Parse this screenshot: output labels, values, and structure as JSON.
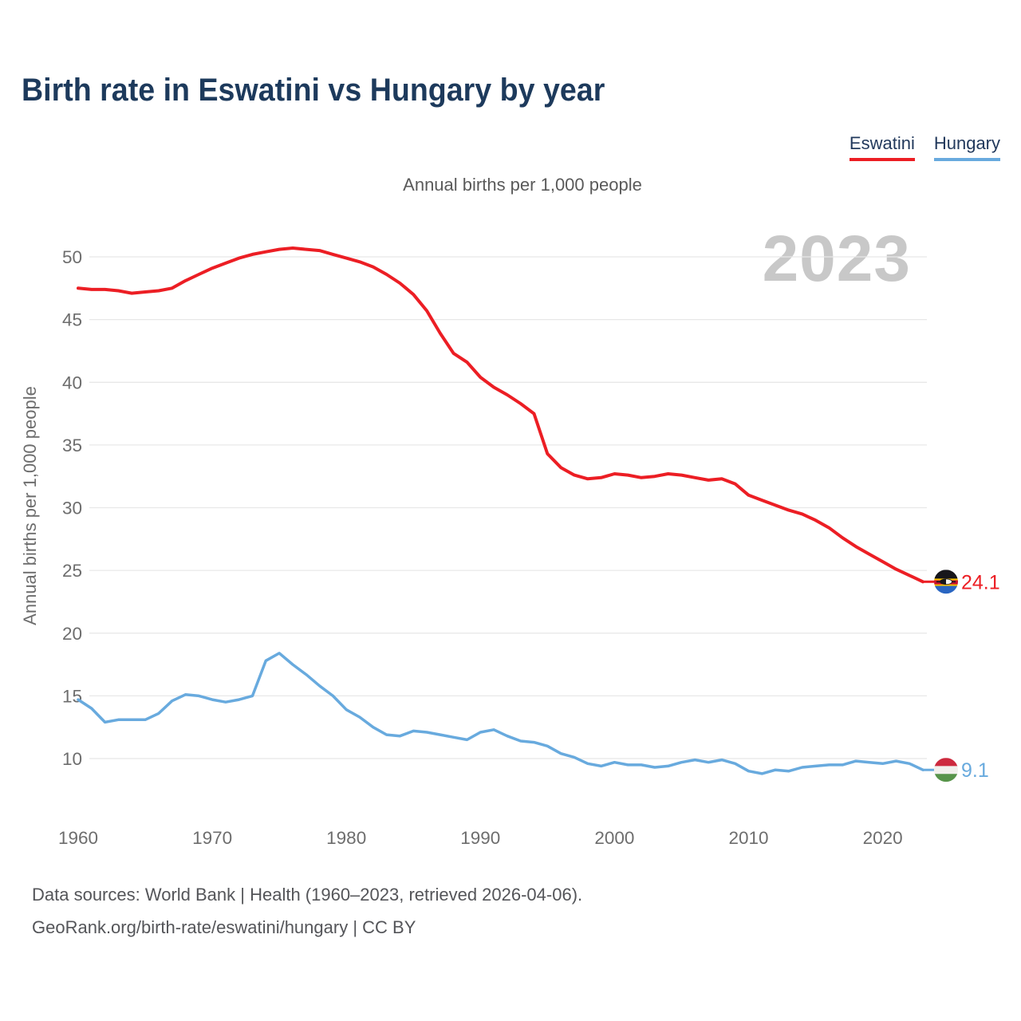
{
  "header": {
    "title": "Birth rate in Eswatini vs Hungary by year"
  },
  "legend": [
    {
      "label": "Eswatini",
      "color": "#ec1e24"
    },
    {
      "label": "Hungary",
      "color": "#68aade"
    }
  ],
  "watermark": "2023",
  "footer": {
    "line1": "Data sources: World Bank | Health (1960–2023, retrieved 2026-04-06).",
    "line2": "GeoRank.org/birth-rate/eswatini/hungary | CC BY"
  },
  "chart_data": {
    "type": "line",
    "title": "Birth rate in Eswatini vs Hungary by year",
    "subtitle": "Annual births per 1,000 people",
    "xlabel": "",
    "ylabel": "Annual births per 1,000 people",
    "xlim": [
      1960,
      2023
    ],
    "ylim": [
      7.5,
      52
    ],
    "grid": "horizontal",
    "legend_position": "top-right",
    "yticks": [
      10,
      15,
      20,
      25,
      30,
      35,
      40,
      45,
      50
    ],
    "xticks": [
      1960,
      1970,
      1980,
      1990,
      2000,
      2010,
      2020
    ],
    "x": [
      1960,
      1961,
      1962,
      1963,
      1964,
      1965,
      1966,
      1967,
      1968,
      1969,
      1970,
      1971,
      1972,
      1973,
      1974,
      1975,
      1976,
      1977,
      1978,
      1979,
      1980,
      1981,
      1982,
      1983,
      1984,
      1985,
      1986,
      1987,
      1988,
      1989,
      1990,
      1991,
      1992,
      1993,
      1994,
      1995,
      1996,
      1997,
      1998,
      1999,
      2000,
      2001,
      2002,
      2003,
      2004,
      2005,
      2006,
      2007,
      2008,
      2009,
      2010,
      2011,
      2012,
      2013,
      2014,
      2015,
      2016,
      2017,
      2018,
      2019,
      2020,
      2021,
      2022,
      2023
    ],
    "series": [
      {
        "name": "Eswatini",
        "color": "#ec1e24",
        "line_width": 4,
        "end_label": "24.1",
        "end_value": 24.1,
        "flag": "eswatini",
        "values": [
          47.5,
          47.4,
          47.4,
          47.3,
          47.1,
          47.2,
          47.3,
          47.5,
          48.1,
          48.6,
          49.1,
          49.5,
          49.9,
          50.2,
          50.4,
          50.6,
          50.7,
          50.6,
          50.5,
          50.2,
          49.9,
          49.6,
          49.2,
          48.6,
          47.9,
          47.0,
          45.7,
          43.9,
          42.3,
          41.6,
          40.4,
          39.6,
          39.0,
          38.3,
          37.5,
          34.3,
          33.2,
          32.6,
          32.3,
          32.4,
          32.7,
          32.6,
          32.4,
          32.5,
          32.7,
          32.6,
          32.4,
          32.2,
          32.3,
          31.9,
          31.0,
          30.6,
          30.2,
          29.8,
          29.5,
          29.0,
          28.4,
          27.6,
          26.9,
          26.3,
          25.7,
          25.1,
          24.6,
          24.1
        ]
      },
      {
        "name": "Hungary",
        "color": "#68aade",
        "line_width": 3.5,
        "end_label": "9.1",
        "end_value": 9.1,
        "flag": "hungary",
        "values": [
          14.7,
          14.0,
          12.9,
          13.1,
          13.1,
          13.1,
          13.6,
          14.6,
          15.1,
          15.0,
          14.7,
          14.5,
          14.7,
          15.0,
          17.8,
          18.4,
          17.5,
          16.7,
          15.8,
          15.0,
          13.9,
          13.3,
          12.5,
          11.9,
          11.8,
          12.2,
          12.1,
          11.9,
          11.7,
          11.5,
          12.1,
          12.3,
          11.8,
          11.4,
          11.3,
          11.0,
          10.4,
          10.1,
          9.6,
          9.4,
          9.7,
          9.5,
          9.5,
          9.3,
          9.4,
          9.7,
          9.9,
          9.7,
          9.9,
          9.6,
          9.0,
          8.8,
          9.1,
          9.0,
          9.3,
          9.4,
          9.5,
          9.5,
          9.8,
          9.7,
          9.6,
          9.8,
          9.6,
          9.1
        ]
      }
    ]
  },
  "icons": {
    "eswatini_flag": {
      "name": "eswatini-flag-icon",
      "stripes": [
        [
          "#17161b",
          0,
          0.37
        ],
        [
          "#f8c300",
          0.37,
          0.44
        ],
        [
          "#c8102e",
          0.44,
          0.61
        ],
        [
          "#f8c300",
          0.61,
          0.675
        ],
        [
          "#2a66c2",
          0.675,
          1
        ]
      ],
      "shield": {
        "dark": "#17161b",
        "light": "#f4f4ef"
      }
    },
    "hungary_flag": {
      "name": "hungary-flag-icon",
      "stripes": [
        [
          "#cd2a3e",
          0,
          0.34
        ],
        [
          "#f1f0ec",
          0.34,
          0.67
        ],
        [
          "#57944a",
          0.67,
          1
        ]
      ]
    }
  }
}
